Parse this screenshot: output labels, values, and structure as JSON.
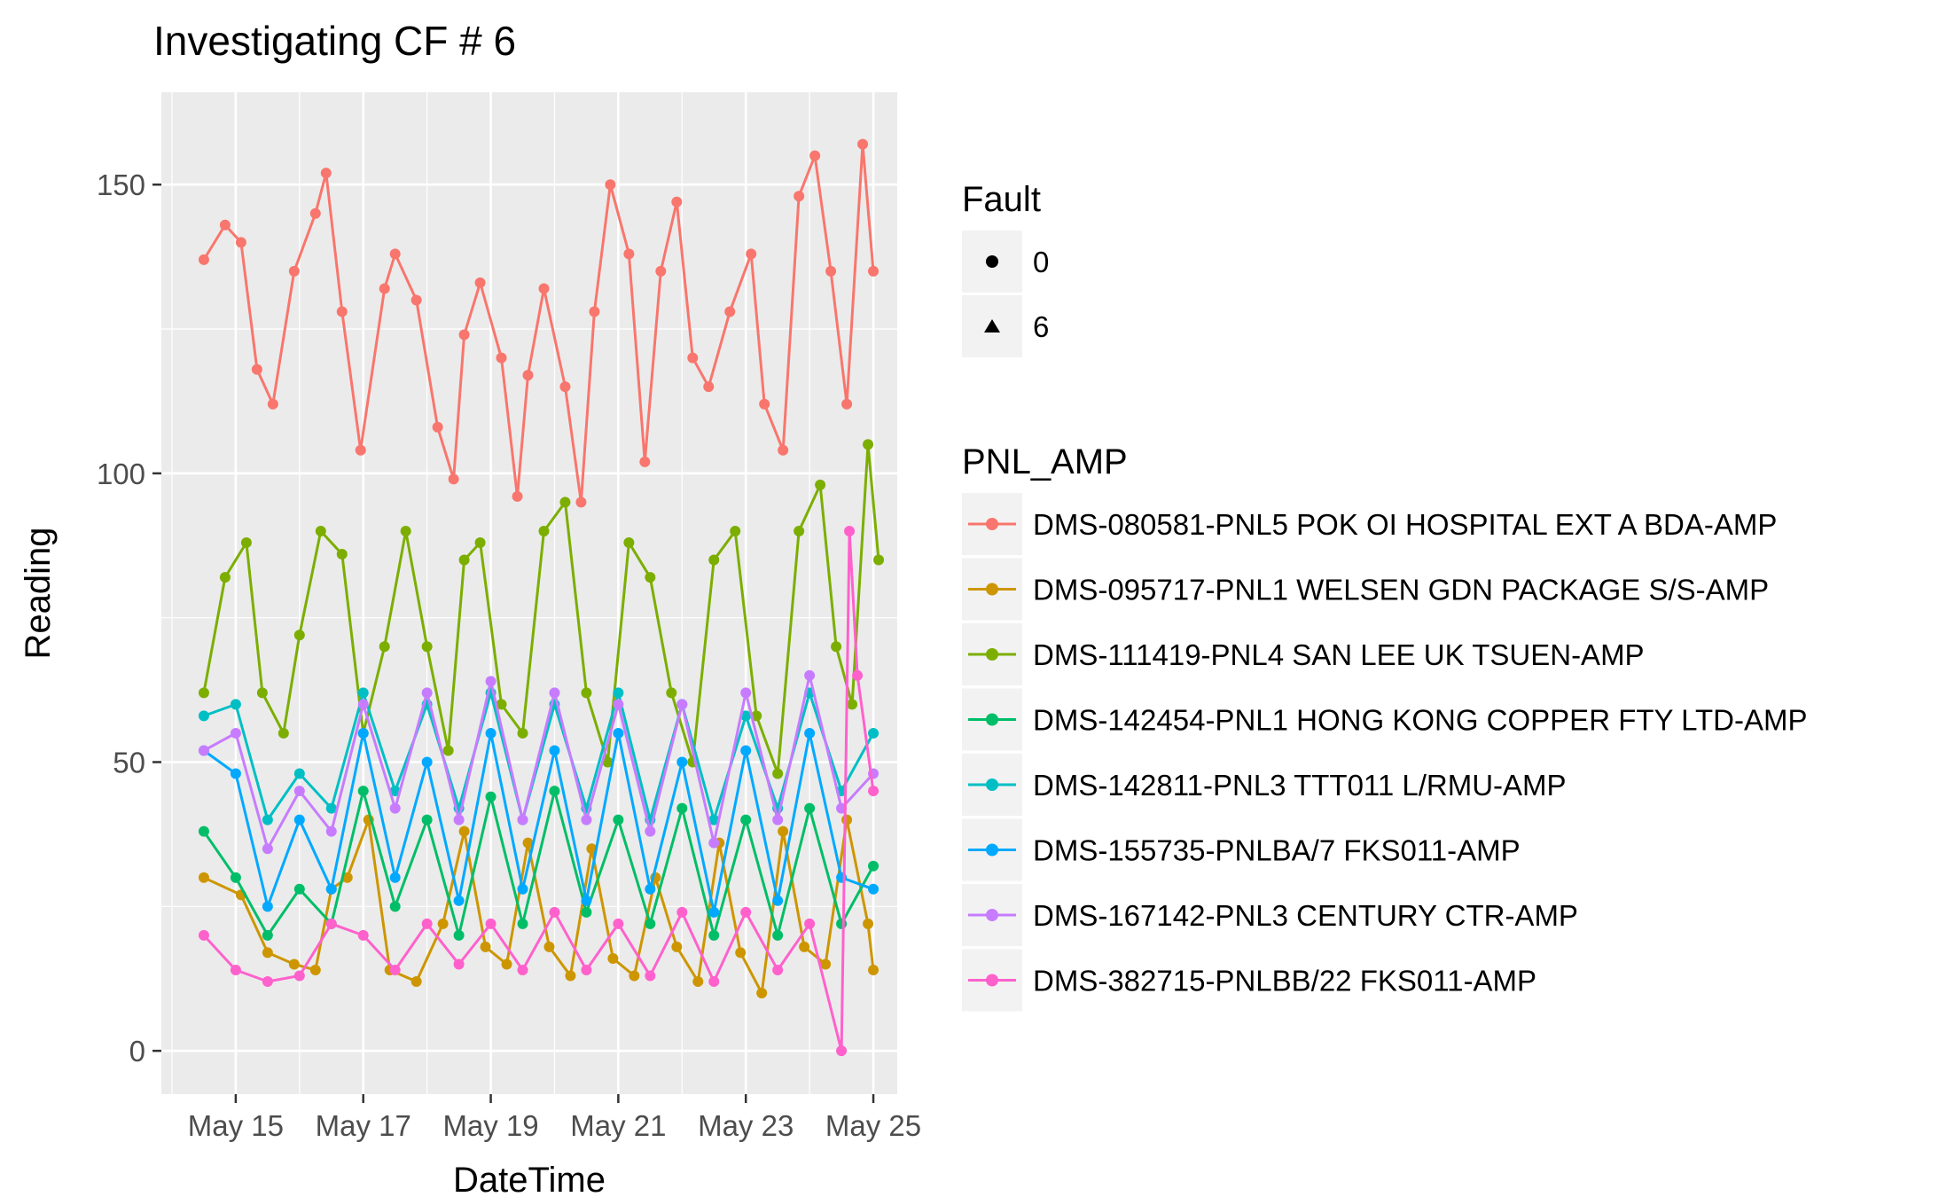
{
  "chart_data": {
    "type": "line",
    "title": "Investigating CF # 6",
    "xlabel": "DateTime",
    "ylabel": "Reading",
    "x_range": [
      "2017-05-13T20:00",
      "2017-05-25T09:00"
    ],
    "ylim": [
      -7.5,
      166
    ],
    "x_ticks": [
      {
        "label": "May 15",
        "date": "2017-05-15"
      },
      {
        "label": "May 17",
        "date": "2017-05-17"
      },
      {
        "label": "May 19",
        "date": "2017-05-19"
      },
      {
        "label": "May 21",
        "date": "2017-05-21"
      },
      {
        "label": "May 23",
        "date": "2017-05-23"
      },
      {
        "label": "May 25",
        "date": "2017-05-25"
      }
    ],
    "y_ticks": [
      0,
      50,
      100,
      150
    ],
    "grid": true,
    "legend_position": "right",
    "fault_legend": {
      "title": "Fault",
      "levels": [
        "0",
        "6"
      ]
    },
    "series_legend_title": "PNL_AMP",
    "series": [
      {
        "name": "DMS-080581-PNL5 POK OI HOSPITAL EXT A BDA-AMP",
        "color": "#F8766D",
        "x": [
          "2017-05-14T12:00",
          "2017-05-14T20:00",
          "2017-05-15T02:00",
          "2017-05-15T08:00",
          "2017-05-15T14:00",
          "2017-05-15T22:00",
          "2017-05-16T06:00",
          "2017-05-16T10:00",
          "2017-05-16T16:00",
          "2017-05-16T23:00",
          "2017-05-17T08:00",
          "2017-05-17T12:00",
          "2017-05-17T20:00",
          "2017-05-18T04:00",
          "2017-05-18T10:00",
          "2017-05-18T14:00",
          "2017-05-18T20:00",
          "2017-05-19T04:00",
          "2017-05-19T10:00",
          "2017-05-19T14:00",
          "2017-05-19T20:00",
          "2017-05-20T04:00",
          "2017-05-20T10:00",
          "2017-05-20T15:00",
          "2017-05-20T21:00",
          "2017-05-21T04:00",
          "2017-05-21T10:00",
          "2017-05-21T16:00",
          "2017-05-21T22:00",
          "2017-05-22T04:00",
          "2017-05-22T10:00",
          "2017-05-22T18:00",
          "2017-05-23T02:00",
          "2017-05-23T07:00",
          "2017-05-23T14:00",
          "2017-05-23T20:00",
          "2017-05-24T02:00",
          "2017-05-24T08:00",
          "2017-05-24T14:00",
          "2017-05-24T20:00",
          "2017-05-25T00:00"
        ],
        "y": [
          137,
          143,
          140,
          118,
          112,
          135,
          145,
          152,
          128,
          104,
          132,
          138,
          130,
          108,
          99,
          124,
          133,
          120,
          96,
          117,
          132,
          115,
          95,
          128,
          150,
          138,
          102,
          135,
          147,
          120,
          115,
          128,
          138,
          112,
          104,
          148,
          155,
          135,
          112,
          157,
          135
        ]
      },
      {
        "name": "DMS-095717-PNL1 WELSEN GDN PACKAGE S/S-AMP",
        "color": "#CD9600",
        "x": [
          "2017-05-14T12:00",
          "2017-05-15T02:00",
          "2017-05-15T12:00",
          "2017-05-15T22:00",
          "2017-05-16T06:00",
          "2017-05-16T12:00",
          "2017-05-16T18:00",
          "2017-05-17T02:00",
          "2017-05-17T10:00",
          "2017-05-17T20:00",
          "2017-05-18T06:00",
          "2017-05-18T14:00",
          "2017-05-18T22:00",
          "2017-05-19T06:00",
          "2017-05-19T14:00",
          "2017-05-19T22:00",
          "2017-05-20T06:00",
          "2017-05-20T14:00",
          "2017-05-20T22:00",
          "2017-05-21T06:00",
          "2017-05-21T14:00",
          "2017-05-21T22:00",
          "2017-05-22T06:00",
          "2017-05-22T14:00",
          "2017-05-22T22:00",
          "2017-05-23T06:00",
          "2017-05-23T14:00",
          "2017-05-23T22:00",
          "2017-05-24T06:00",
          "2017-05-24T14:00",
          "2017-05-24T22:00",
          "2017-05-25T00:00"
        ],
        "y": [
          30,
          27,
          17,
          15,
          14,
          28,
          30,
          40,
          14,
          12,
          22,
          38,
          18,
          15,
          36,
          18,
          13,
          35,
          16,
          13,
          30,
          18,
          12,
          36,
          17,
          10,
          38,
          18,
          15,
          40,
          22,
          14
        ]
      },
      {
        "name": "DMS-111419-PNL4 SAN LEE UK TSUEN-AMP",
        "color": "#7CAE00",
        "x": [
          "2017-05-14T12:00",
          "2017-05-14T20:00",
          "2017-05-15T04:00",
          "2017-05-15T10:00",
          "2017-05-15T18:00",
          "2017-05-16T00:00",
          "2017-05-16T08:00",
          "2017-05-16T16:00",
          "2017-05-17T00:00",
          "2017-05-17T08:00",
          "2017-05-17T16:00",
          "2017-05-18T00:00",
          "2017-05-18T08:00",
          "2017-05-18T14:00",
          "2017-05-18T20:00",
          "2017-05-19T04:00",
          "2017-05-19T12:00",
          "2017-05-19T20:00",
          "2017-05-20T04:00",
          "2017-05-20T12:00",
          "2017-05-20T20:00",
          "2017-05-21T04:00",
          "2017-05-21T12:00",
          "2017-05-21T20:00",
          "2017-05-22T04:00",
          "2017-05-22T12:00",
          "2017-05-22T20:00",
          "2017-05-23T04:00",
          "2017-05-23T12:00",
          "2017-05-23T20:00",
          "2017-05-24T04:00",
          "2017-05-24T10:00",
          "2017-05-24T16:00",
          "2017-05-24T22:00",
          "2017-05-25T02:00"
        ],
        "y": [
          62,
          82,
          88,
          62,
          55,
          72,
          90,
          86,
          55,
          70,
          90,
          70,
          52,
          85,
          88,
          60,
          55,
          90,
          95,
          62,
          50,
          88,
          82,
          62,
          50,
          85,
          90,
          58,
          48,
          90,
          98,
          70,
          60,
          105,
          85
        ]
      },
      {
        "name": "DMS-142454-PNL1 HONG KONG COPPER FTY LTD-AMP",
        "color": "#00BE67",
        "x": [
          "2017-05-14T12:00",
          "2017-05-15T00:00",
          "2017-05-15T12:00",
          "2017-05-16T00:00",
          "2017-05-16T12:00",
          "2017-05-17T00:00",
          "2017-05-17T12:00",
          "2017-05-18T00:00",
          "2017-05-18T12:00",
          "2017-05-19T00:00",
          "2017-05-19T12:00",
          "2017-05-20T00:00",
          "2017-05-20T12:00",
          "2017-05-21T00:00",
          "2017-05-21T12:00",
          "2017-05-22T00:00",
          "2017-05-22T12:00",
          "2017-05-23T00:00",
          "2017-05-23T12:00",
          "2017-05-24T00:00",
          "2017-05-24T12:00",
          "2017-05-25T00:00"
        ],
        "y": [
          38,
          30,
          20,
          28,
          22,
          45,
          25,
          40,
          20,
          44,
          22,
          45,
          24,
          40,
          22,
          42,
          20,
          40,
          20,
          42,
          22,
          32
        ]
      },
      {
        "name": "DMS-142811-PNL3 TTT011 L/RMU-AMP",
        "color": "#00BFC4",
        "x": [
          "2017-05-14T12:00",
          "2017-05-15T00:00",
          "2017-05-15T12:00",
          "2017-05-16T00:00",
          "2017-05-16T12:00",
          "2017-05-17T00:00",
          "2017-05-17T12:00",
          "2017-05-18T00:00",
          "2017-05-18T12:00",
          "2017-05-19T00:00",
          "2017-05-19T12:00",
          "2017-05-20T00:00",
          "2017-05-20T12:00",
          "2017-05-21T00:00",
          "2017-05-21T12:00",
          "2017-05-22T00:00",
          "2017-05-22T12:00",
          "2017-05-23T00:00",
          "2017-05-23T12:00",
          "2017-05-24T00:00",
          "2017-05-24T12:00",
          "2017-05-25T00:00"
        ],
        "y": [
          58,
          60,
          40,
          48,
          42,
          62,
          45,
          60,
          42,
          62,
          40,
          60,
          42,
          62,
          40,
          60,
          40,
          58,
          42,
          62,
          45,
          55
        ]
      },
      {
        "name": "DMS-155735-PNLBA/7 FKS011-AMP",
        "color": "#00A9FF",
        "x": [
          "2017-05-14T12:00",
          "2017-05-15T00:00",
          "2017-05-15T12:00",
          "2017-05-16T00:00",
          "2017-05-16T12:00",
          "2017-05-17T00:00",
          "2017-05-17T12:00",
          "2017-05-18T00:00",
          "2017-05-18T12:00",
          "2017-05-19T00:00",
          "2017-05-19T12:00",
          "2017-05-20T00:00",
          "2017-05-20T12:00",
          "2017-05-21T00:00",
          "2017-05-21T12:00",
          "2017-05-22T00:00",
          "2017-05-22T12:00",
          "2017-05-23T00:00",
          "2017-05-23T12:00",
          "2017-05-24T00:00",
          "2017-05-24T12:00",
          "2017-05-25T00:00"
        ],
        "y": [
          52,
          48,
          25,
          40,
          28,
          55,
          30,
          50,
          26,
          55,
          28,
          52,
          26,
          55,
          28,
          50,
          24,
          52,
          26,
          55,
          30,
          28
        ]
      },
      {
        "name": "DMS-167142-PNL3 CENTURY CTR-AMP",
        "color": "#C77CFF",
        "x": [
          "2017-05-14T12:00",
          "2017-05-15T00:00",
          "2017-05-15T12:00",
          "2017-05-16T00:00",
          "2017-05-16T12:00",
          "2017-05-17T00:00",
          "2017-05-17T12:00",
          "2017-05-18T00:00",
          "2017-05-18T12:00",
          "2017-05-19T00:00",
          "2017-05-19T12:00",
          "2017-05-20T00:00",
          "2017-05-20T12:00",
          "2017-05-21T00:00",
          "2017-05-21T12:00",
          "2017-05-22T00:00",
          "2017-05-22T12:00",
          "2017-05-23T00:00",
          "2017-05-23T12:00",
          "2017-05-24T00:00",
          "2017-05-24T12:00",
          "2017-05-25T00:00"
        ],
        "y": [
          52,
          55,
          35,
          45,
          38,
          60,
          42,
          62,
          40,
          64,
          40,
          62,
          40,
          60,
          38,
          60,
          36,
          62,
          40,
          65,
          42,
          48
        ]
      },
      {
        "name": "DMS-382715-PNLBB/22 FKS011-AMP",
        "color": "#FF61CC",
        "x": [
          "2017-05-14T12:00",
          "2017-05-15T00:00",
          "2017-05-15T12:00",
          "2017-05-16T00:00",
          "2017-05-16T12:00",
          "2017-05-17T00:00",
          "2017-05-17T12:00",
          "2017-05-18T00:00",
          "2017-05-18T12:00",
          "2017-05-19T00:00",
          "2017-05-19T12:00",
          "2017-05-20T00:00",
          "2017-05-20T12:00",
          "2017-05-21T00:00",
          "2017-05-21T12:00",
          "2017-05-22T00:00",
          "2017-05-22T12:00",
          "2017-05-23T00:00",
          "2017-05-23T12:00",
          "2017-05-24T00:00",
          "2017-05-24T12:00",
          "2017-05-24T15:00",
          "2017-05-24T18:00",
          "2017-05-25T00:00"
        ],
        "y": [
          20,
          14,
          12,
          13,
          22,
          20,
          14,
          22,
          15,
          22,
          14,
          24,
          14,
          22,
          13,
          24,
          12,
          24,
          14,
          22,
          0,
          90,
          65,
          45
        ]
      }
    ]
  }
}
